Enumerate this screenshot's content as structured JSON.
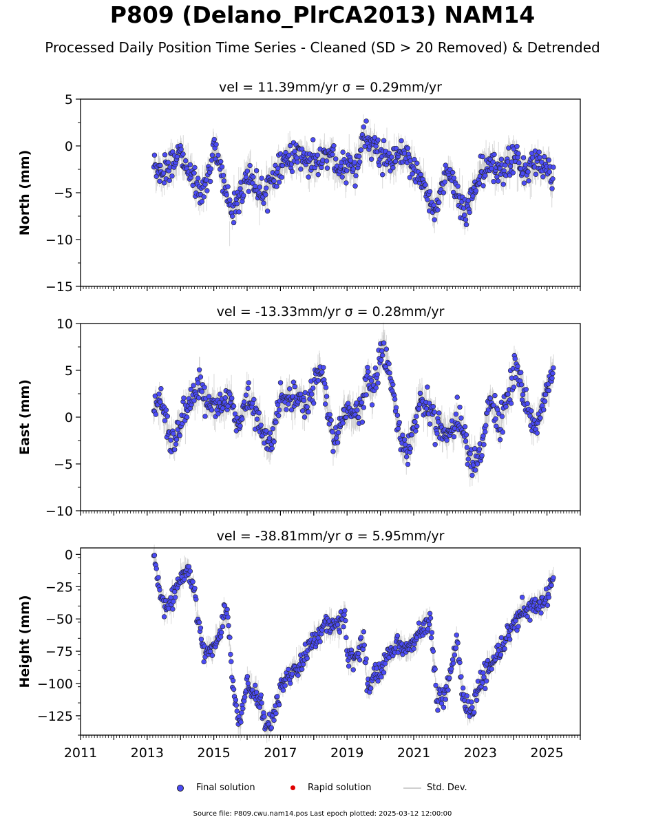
{
  "title": "P809 (Delano_PlrCA2013) NAM14",
  "subtitle": "Processed Daily Position Time Series - Cleaned (SD > 20 Removed) & Detrended",
  "legend": {
    "final": "Final solution",
    "rapid": "Rapid solution",
    "std": "Std. Dev."
  },
  "footer": "Source file: P809.cwu.nam14.pos  Last epoch plotted: 2025-03-12 12:00:00",
  "colors": {
    "final": "#4b4bf5",
    "rapid": "#e00000",
    "std": "#cfcfcf"
  },
  "chart_data": [
    {
      "type": "scatter",
      "panel": "north",
      "title": "vel = 11.39mm/yr   σ = 0.29mm/yr",
      "ylabel": "North (mm)",
      "xlim": [
        2011,
        2026
      ],
      "ylim": [
        -15,
        5
      ],
      "yticks": [
        5,
        0,
        -5,
        -10,
        -15
      ],
      "ytick_labels": [
        "5",
        "0",
        "−5",
        "−10",
        "−15"
      ],
      "x_start": 2013.2,
      "x_end": 2025.2,
      "gap": [
        2019.45,
        2019.45
      ],
      "spread": 0.8,
      "series": [
        {
          "name": "Final solution",
          "x": [
            2013.2,
            2013.4,
            2013.7,
            2014.0,
            2014.3,
            2014.6,
            2014.9,
            2015.0,
            2015.2,
            2015.5,
            2015.7,
            2016.0,
            2016.2,
            2016.5,
            2016.8,
            2017.0,
            2017.5,
            2018.0,
            2018.5,
            2018.8,
            2019.0,
            2019.3,
            2019.5,
            2019.8,
            2020.0,
            2020.3,
            2020.6,
            2021.0,
            2021.3,
            2021.6,
            2021.9,
            2022.0,
            2022.3,
            2022.6,
            2023.0,
            2023.3,
            2023.6,
            2024.0,
            2024.3,
            2024.6,
            2025.0,
            2025.2
          ],
          "y": [
            -2,
            -3,
            -2,
            -1,
            -3,
            -5,
            -3,
            0,
            -2,
            -7,
            -6,
            -3,
            -4,
            -5,
            -3,
            -2,
            -1,
            -2,
            -1,
            -3,
            -2,
            -2,
            1,
            0,
            -1,
            -2,
            -1,
            -2,
            -4,
            -7,
            -4,
            -3,
            -5,
            -7,
            -3,
            -2,
            -3,
            -1,
            -3,
            -2,
            -2,
            -4
          ]
        }
      ]
    },
    {
      "type": "scatter",
      "panel": "east",
      "title": "vel = -13.33mm/yr   σ = 0.28mm/yr",
      "ylabel": "East (mm)",
      "xlim": [
        2011,
        2026
      ],
      "ylim": [
        -10,
        10
      ],
      "yticks": [
        10,
        5,
        0,
        -5,
        -10
      ],
      "ytick_labels": [
        "10",
        "5",
        "0",
        "−5",
        "−10"
      ],
      "x_start": 2013.2,
      "x_end": 2025.2,
      "gap": [
        2019.45,
        2019.45
      ],
      "spread": 0.8,
      "series": [
        {
          "name": "Final solution",
          "x": [
            2013.2,
            2013.4,
            2013.7,
            2014.0,
            2014.3,
            2014.6,
            2014.9,
            2015.2,
            2015.5,
            2015.7,
            2016.0,
            2016.3,
            2016.7,
            2017.0,
            2017.4,
            2017.8,
            2018.2,
            2018.6,
            2019.0,
            2019.3,
            2019.6,
            2019.8,
            2020.1,
            2020.3,
            2020.6,
            2020.8,
            2021.2,
            2021.6,
            2022.0,
            2022.3,
            2022.6,
            2022.8,
            2023.0,
            2023.3,
            2023.6,
            2024.0,
            2024.2,
            2024.5,
            2024.7,
            2025.0,
            2025.2
          ],
          "y": [
            1,
            2,
            -3,
            -1,
            2,
            3,
            1,
            1,
            2,
            -1,
            2,
            0,
            -3,
            2,
            2,
            1,
            5,
            -3,
            1,
            0,
            4,
            3,
            8,
            4,
            -2,
            -4,
            2,
            0,
            -2,
            0,
            -3,
            -5,
            -4,
            2,
            -1,
            5,
            4,
            0,
            -1,
            3,
            5
          ]
        }
      ]
    },
    {
      "type": "scatter",
      "panel": "height",
      "title": "vel = -38.81mm/yr   σ = 5.95mm/yr",
      "ylabel": "Height (mm)",
      "xlim": [
        2011,
        2026
      ],
      "ylim": [
        -140,
        5
      ],
      "yticks": [
        0,
        -25,
        -50,
        -75,
        -100,
        -125
      ],
      "ytick_labels": [
        "0",
        "−25",
        "−50",
        "−75",
        "−100",
        "−125"
      ],
      "x_start": 2013.2,
      "x_end": 2025.2,
      "gap": [
        2019.45,
        2019.45
      ],
      "spread": 4,
      "series": [
        {
          "name": "Final solution",
          "x": [
            2013.2,
            2013.3,
            2013.5,
            2013.7,
            2014.0,
            2014.2,
            2014.4,
            2014.7,
            2014.9,
            2015.2,
            2015.4,
            2015.6,
            2015.8,
            2016.0,
            2016.3,
            2016.5,
            2016.7,
            2017.0,
            2017.3,
            2017.6,
            2018.0,
            2018.4,
            2018.8,
            2018.95,
            2019.0,
            2019.2,
            2019.4,
            2019.5,
            2019.6,
            2019.9,
            2020.2,
            2020.5,
            2020.8,
            2021.0,
            2021.3,
            2021.5,
            2021.7,
            2022.0,
            2022.3,
            2022.5,
            2022.7,
            2023.0,
            2023.4,
            2023.8,
            2024.2,
            2024.6,
            2025.0,
            2025.2
          ],
          "y": [
            0,
            -15,
            -40,
            -40,
            -20,
            -10,
            -30,
            -75,
            -75,
            -60,
            -40,
            -110,
            -130,
            -100,
            -110,
            -125,
            -135,
            -105,
            -90,
            -85,
            -65,
            -55,
            -55,
            -45,
            -80,
            -80,
            -70,
            -65,
            -100,
            -95,
            -80,
            -70,
            -75,
            -70,
            -55,
            -50,
            -115,
            -105,
            -65,
            -115,
            -125,
            -100,
            -80,
            -65,
            -45,
            -40,
            -35,
            -15
          ]
        }
      ]
    }
  ],
  "x_ticks": [
    2011,
    2013,
    2015,
    2017,
    2019,
    2021,
    2023,
    2025
  ],
  "x_tick_labels": [
    "2011",
    "2013",
    "2015",
    "2017",
    "2019",
    "2021",
    "2023",
    "2025"
  ]
}
